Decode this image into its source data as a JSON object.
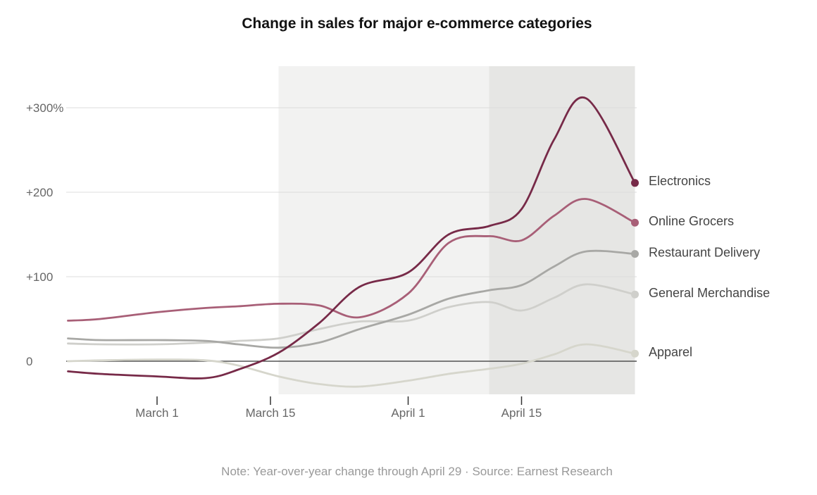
{
  "chart_data": {
    "type": "line",
    "title": "Change in sales for major e-commerce categories",
    "note": "Note: Year-over-year change through April 29 · Source: Earnest Research",
    "xlabel": "",
    "ylabel": "",
    "ylim": [
      -40,
      350
    ],
    "xlim": [
      -11,
      60
    ],
    "yticks": [
      {
        "value": 300,
        "label": "+300%"
      },
      {
        "value": 200,
        "label": "+200"
      },
      {
        "value": 100,
        "label": "+100"
      },
      {
        "value": 0,
        "label": "0"
      }
    ],
    "xticks": [
      {
        "value": 0,
        "label": "March 1"
      },
      {
        "value": 14,
        "label": "March 15"
      },
      {
        "value": 31,
        "label": "April 1"
      },
      {
        "value": 45,
        "label": "April 15"
      }
    ],
    "shaded_periods": [
      {
        "from": 15,
        "to": 41,
        "color": "#f2f2f1"
      },
      {
        "from": 41,
        "to": 59,
        "color": "#e6e6e4"
      }
    ],
    "grid": true,
    "zero_line": true,
    "series": [
      {
        "name": "Apparel",
        "color": "#d6d6cc",
        "x": [
          -11,
          -7,
          0,
          6,
          10,
          15,
          20,
          25,
          31,
          36,
          41,
          45,
          49,
          53,
          59
        ],
        "y": [
          0,
          1,
          2,
          1,
          -5,
          -18,
          -27,
          -30,
          -23,
          -15,
          -9,
          -3,
          8,
          20,
          9
        ]
      },
      {
        "name": "General Merchandise",
        "color": "#cfcfcb",
        "x": [
          -11,
          -7,
          0,
          6,
          10,
          15,
          20,
          25,
          31,
          36,
          41,
          45,
          49,
          53,
          59
        ],
        "y": [
          21,
          20,
          20,
          22,
          24,
          27,
          38,
          47,
          48,
          64,
          70,
          60,
          75,
          91,
          79
        ]
      },
      {
        "name": "Restaurant Delivery",
        "color": "#a8a8a5",
        "x": [
          -11,
          -7,
          0,
          6,
          10,
          15,
          20,
          25,
          31,
          36,
          41,
          45,
          49,
          53,
          59
        ],
        "y": [
          27,
          25,
          25,
          24,
          20,
          16,
          22,
          38,
          55,
          74,
          84,
          90,
          112,
          130,
          127
        ]
      },
      {
        "name": "Online Grocers",
        "color": "#a85f77",
        "x": [
          -11,
          -7,
          0,
          6,
          10,
          15,
          20,
          25,
          31,
          36,
          41,
          45,
          49,
          53,
          59
        ],
        "y": [
          48,
          50,
          58,
          63,
          65,
          68,
          66,
          52,
          80,
          140,
          148,
          143,
          172,
          192,
          164
        ]
      },
      {
        "name": "Electronics",
        "color": "#772a48",
        "x": [
          -11,
          -7,
          0,
          6,
          10,
          15,
          20,
          25,
          31,
          36,
          41,
          45,
          49,
          53,
          59
        ],
        "y": [
          -12,
          -15,
          -18,
          -20,
          -10,
          10,
          45,
          88,
          105,
          150,
          160,
          180,
          262,
          311,
          211
        ]
      }
    ]
  }
}
